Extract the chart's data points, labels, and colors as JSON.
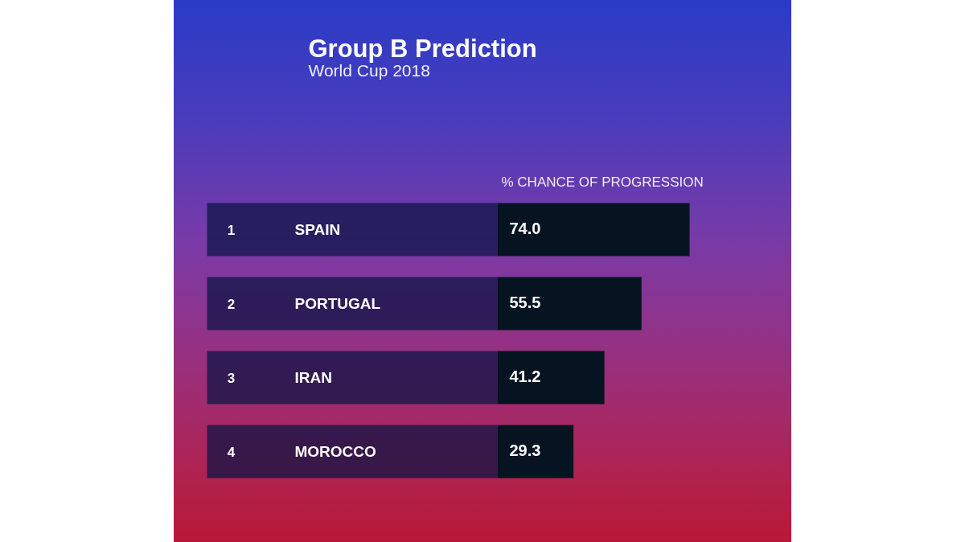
{
  "chart_data": {
    "type": "bar",
    "orientation": "horizontal",
    "title": "Group B Prediction",
    "subtitle": "World Cup 2018",
    "xlabel": "% CHANCE OF PROGRESSION",
    "categories": [
      "SPAIN",
      "PORTUGAL",
      "IRAN",
      "MOROCCO"
    ],
    "values": [
      74.0,
      55.5,
      41.2,
      29.3
    ],
    "value_labels": [
      "74.0",
      "55.5",
      "41.2",
      "29.3"
    ],
    "color": "#061422",
    "annotations": [
      "1",
      "2",
      "3",
      "4"
    ],
    "grid": false
  }
}
